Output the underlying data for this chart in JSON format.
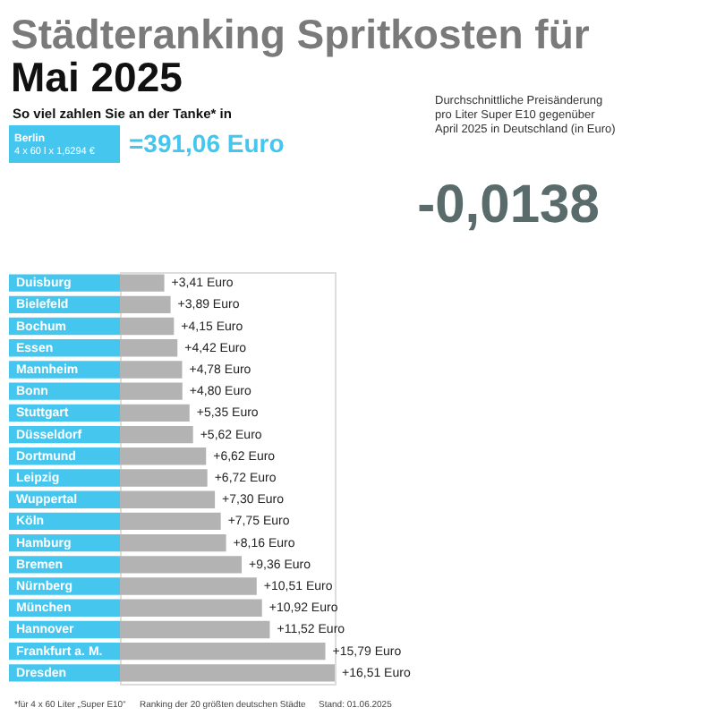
{
  "chart_data": {
    "type": "bar",
    "orientation": "horizontal",
    "title": "Städteranking Spritkosten für Mai 2025",
    "subtitle": "So viel zahlen Sie an der Tanke* in",
    "categories": [
      "Duisburg",
      "Bielefeld",
      "Bochum",
      "Essen",
      "Mannheim",
      "Bonn",
      "Stuttgart",
      "Düsseldorf",
      "Dortmund",
      "Leipzig",
      "Wuppertal",
      "Köln",
      "Hamburg",
      "Bremen",
      "Nürnberg",
      "München",
      "Hannover",
      "Frankfurt a. M.",
      "Dresden"
    ],
    "values": [
      3.41,
      3.89,
      4.15,
      4.42,
      4.78,
      4.8,
      5.35,
      5.62,
      6.62,
      6.72,
      7.3,
      7.75,
      8.16,
      9.36,
      10.51,
      10.92,
      11.52,
      15.79,
      16.51
    ],
    "color": "#b3b3b3",
    "value_labels": [
      "+3,41 Euro",
      "+3,89 Euro",
      "+4,15 Euro",
      "+4,42 Euro",
      "+4,78 Euro",
      "+4,80 Euro",
      "+5,35 Euro",
      "+5,62 Euro",
      "+6,62 Euro",
      "+6,72 Euro",
      "+7,30 Euro",
      "+7,75 Euro",
      "+8,16 Euro",
      "+9,36 Euro",
      "+10,51 Euro",
      "+10,92 Euro",
      "+11,52 Euro",
      "+15,79 Euro",
      "+16,51 Euro"
    ],
    "annotations": [
      "Berlin",
      "4 x 60 l x 1,6294 €",
      "=391,06 Euro",
      "Durchschnittliche Preisänderung",
      "pro Liter Super E10 gegenüber",
      "April 2025 in Deutschland (in Euro)",
      "-0,0138",
      "*für 4 x 60 Liter „Super E10“",
      "Ranking der 20 größten deutschen Städte",
      "Stand: 01.06.2025"
    ]
  }
}
